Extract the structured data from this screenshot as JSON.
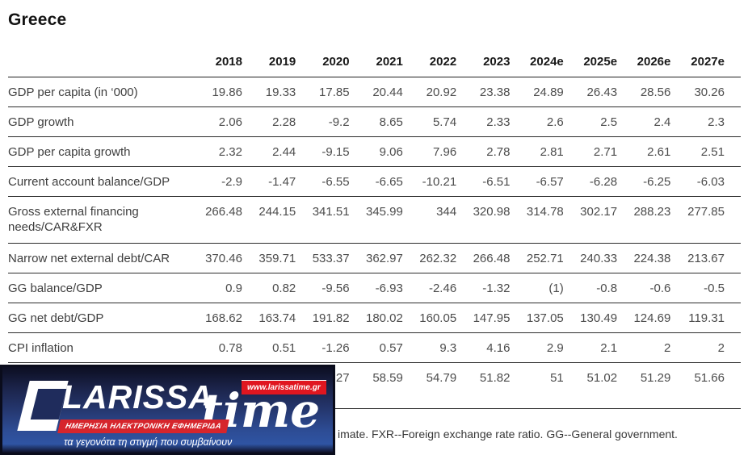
{
  "title": "Greece",
  "table": {
    "year_headers": [
      "2018",
      "2019",
      "2020",
      "2021",
      "2022",
      "2023",
      "2024e",
      "2025e",
      "2026e",
      "2027e"
    ],
    "rows": [
      {
        "label": "GDP per capita (in ‘000)",
        "values": [
          "19.86",
          "19.33",
          "17.85",
          "20.44",
          "20.92",
          "23.38",
          "24.89",
          "26.43",
          "28.56",
          "30.26"
        ]
      },
      {
        "label": "GDP growth",
        "values": [
          "2.06",
          "2.28",
          "-9.2",
          "8.65",
          "5.74",
          "2.33",
          "2.6",
          "2.5",
          "2.4",
          "2.3"
        ]
      },
      {
        "label": "GDP per capita growth",
        "values": [
          "2.32",
          "2.44",
          "-9.15",
          "9.06",
          "7.96",
          "2.78",
          "2.81",
          "2.71",
          "2.61",
          "2.51"
        ]
      },
      {
        "label": "Current account balance/GDP",
        "values": [
          "-2.9",
          "-1.47",
          "-6.55",
          "-6.65",
          "-10.21",
          "-6.51",
          "-6.57",
          "-6.28",
          "-6.25",
          "-6.03"
        ]
      },
      {
        "label": "Gross external financing needs/CAR&FXR",
        "values": [
          "266.48",
          "244.15",
          "341.51",
          "345.99",
          "344",
          "320.98",
          "314.78",
          "302.17",
          "288.23",
          "277.85"
        ]
      },
      {
        "label": "Narrow net external debt/CAR",
        "values": [
          "370.46",
          "359.71",
          "533.37",
          "362.97",
          "262.32",
          "266.48",
          "252.71",
          "240.33",
          "224.38",
          "213.67"
        ]
      },
      {
        "label": "GG balance/GDP",
        "values": [
          "0.9",
          "0.82",
          "-9.56",
          "-6.93",
          "-2.46",
          "-1.32",
          "(1)",
          "-0.8",
          "-0.6",
          "-0.5"
        ]
      },
      {
        "label": "GG net debt/GDP",
        "values": [
          "168.62",
          "163.74",
          "191.82",
          "180.02",
          "160.05",
          "147.95",
          "137.05",
          "130.49",
          "124.69",
          "119.31"
        ]
      },
      {
        "label": "CPI inflation",
        "values": [
          "0.78",
          "0.51",
          "-1.26",
          "0.57",
          "9.3",
          "4.16",
          "2.9",
          "2.1",
          "2",
          "2"
        ]
      },
      {
        "label": "",
        "values": [
          "",
          "",
          "27",
          "58.59",
          "54.79",
          "51.82",
          "51",
          "51.02",
          "51.29",
          "51.66"
        ]
      }
    ],
    "footnote": "imate. FXR--Foreign exchange rate ratio. GG--General government."
  },
  "watermark": {
    "brand_main": "LARISSA",
    "brand_secondary": "time",
    "url": "www.larissatime.gr",
    "ribbon": "ΗΜΕΡΗΣΙΑ ΗΛΕΚΤΡΟΝΙΚΗ ΕΦΗΜΕΡΙΔΑ",
    "tagline": "τα γεγονότα τη στιγμή που συμβαίνουν",
    "colors": {
      "banner_blue": "#2d4c94",
      "banner_dark": "#0c0e22",
      "accent_red": "#d6252c",
      "text_white": "#ffffff"
    }
  }
}
